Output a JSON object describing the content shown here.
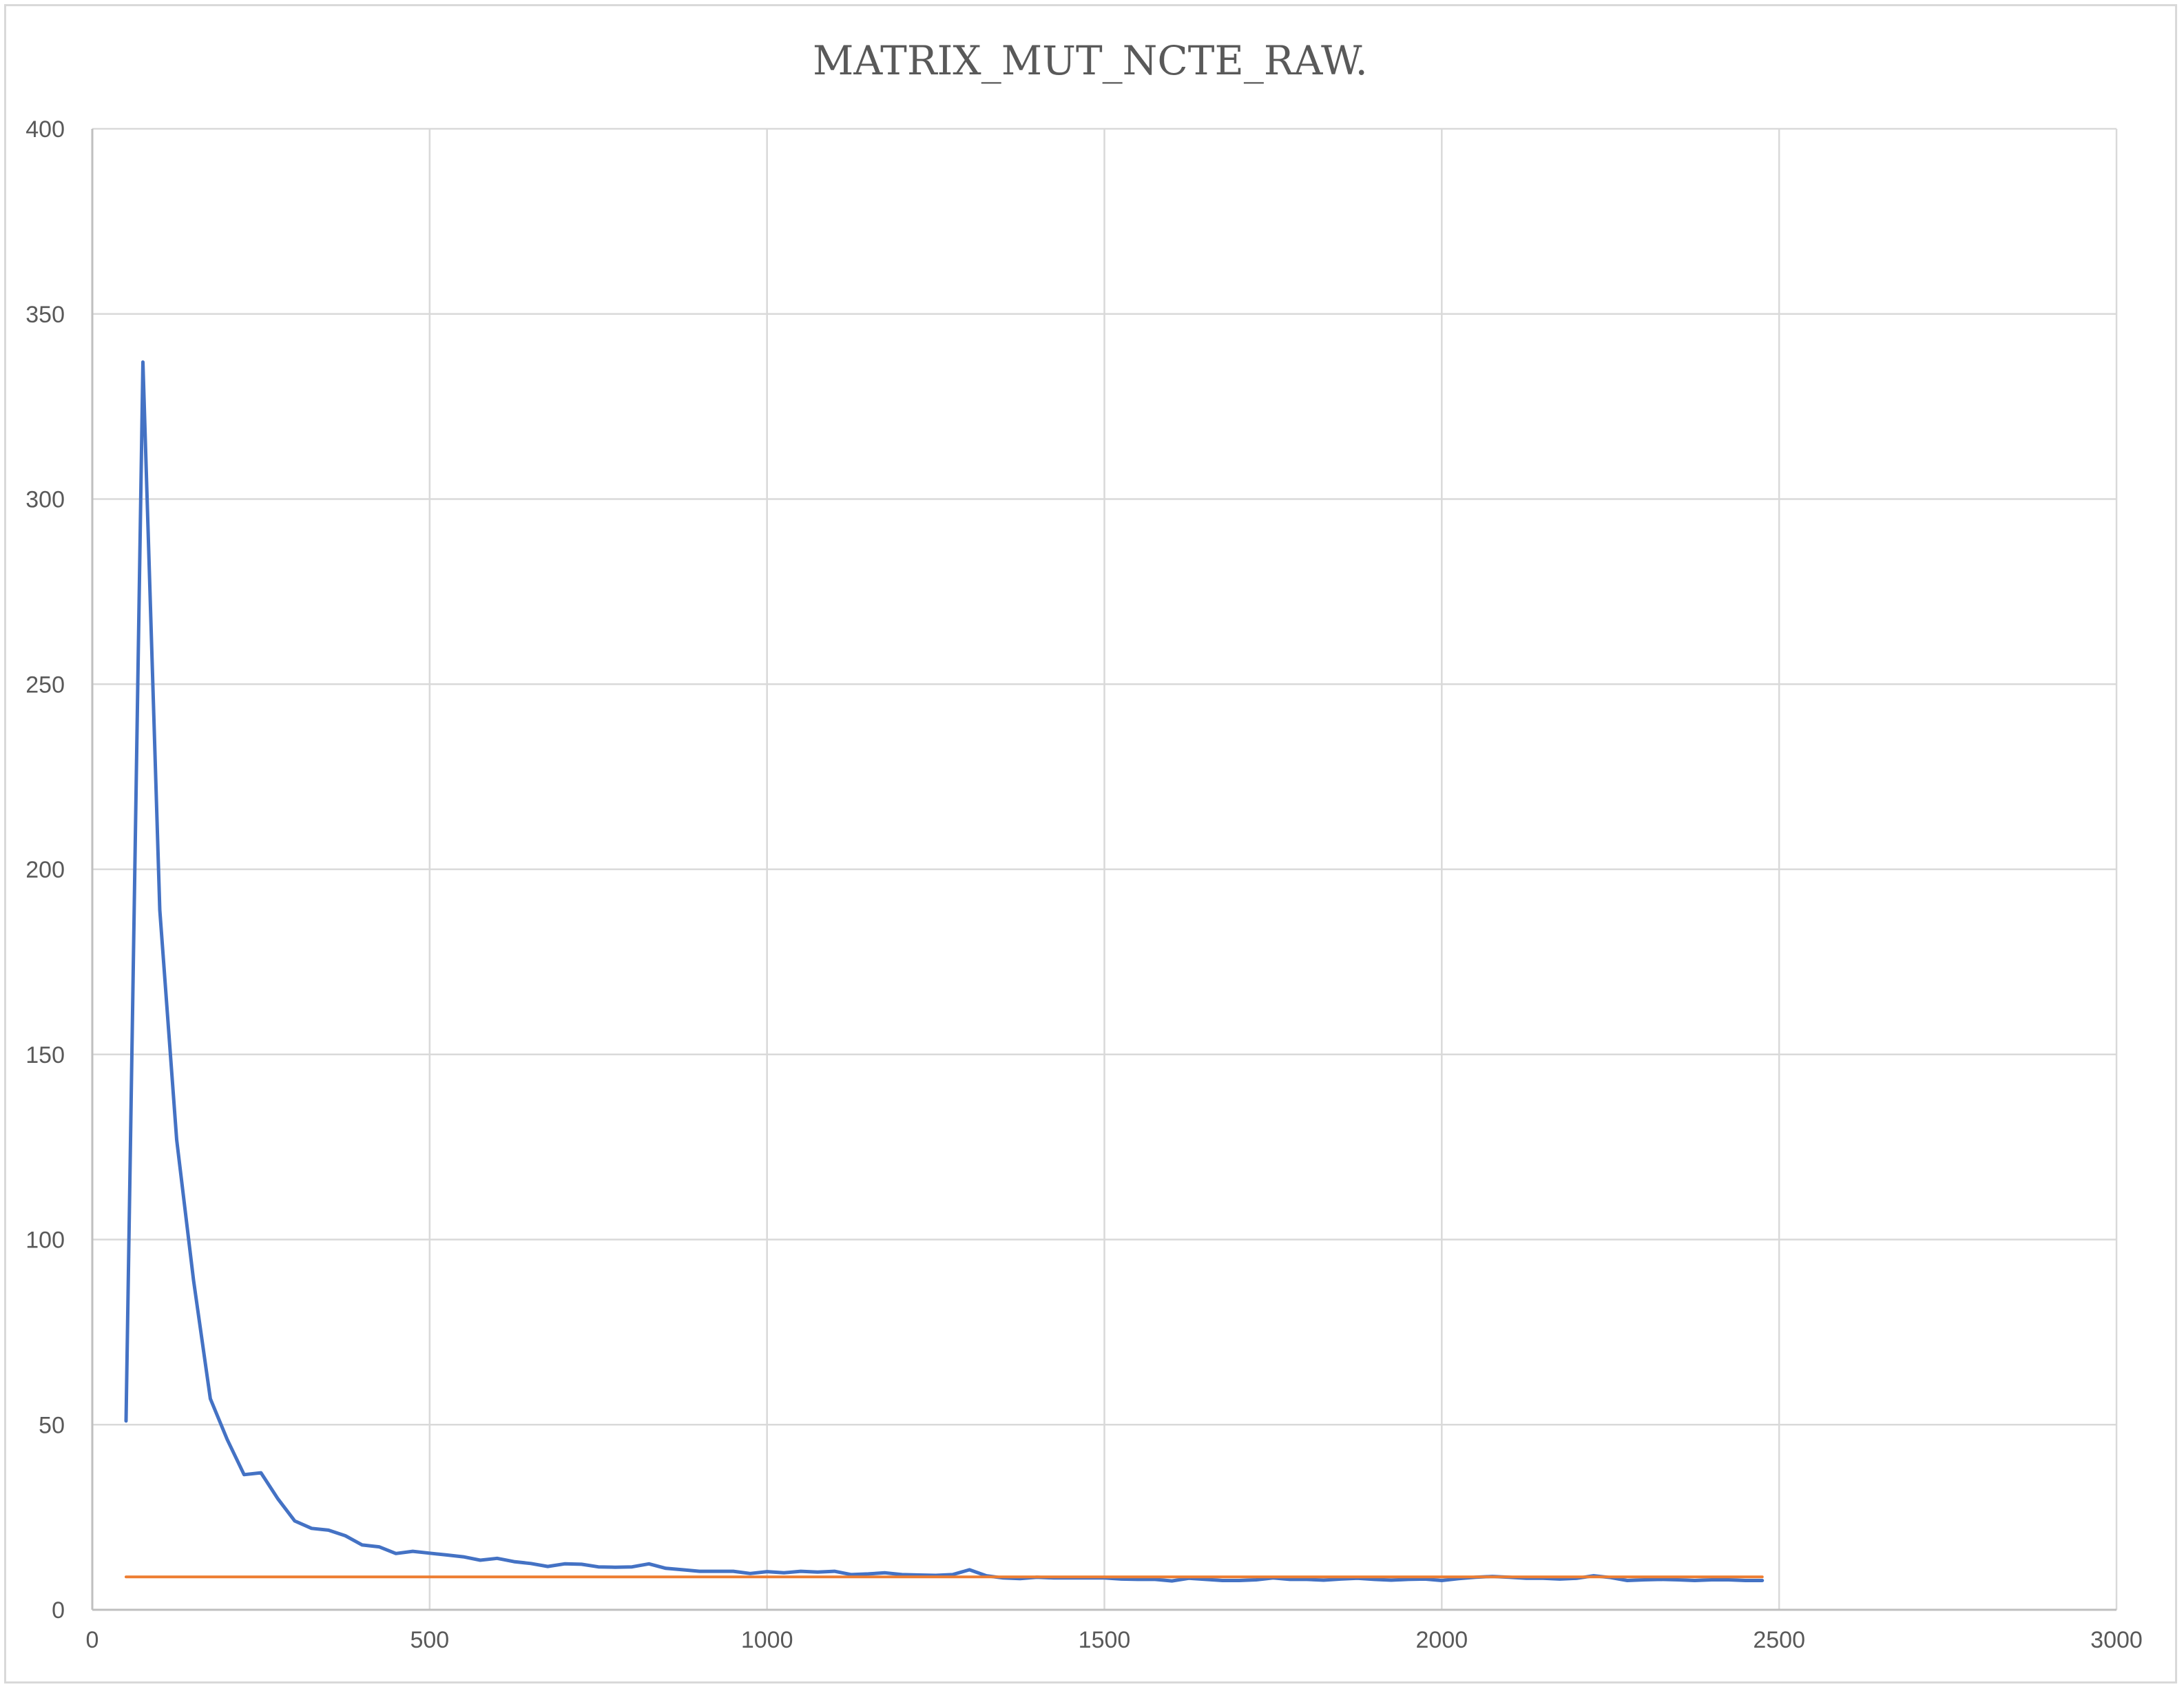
{
  "chart_data": {
    "type": "line",
    "title": "MATRIX_MUT_NCTE_RAW.",
    "xlim": [
      0,
      3000
    ],
    "ylim": [
      0,
      400
    ],
    "x_ticks": [
      0,
      500,
      1000,
      1500,
      2000,
      2500,
      3000
    ],
    "y_ticks": [
      0,
      50,
      100,
      150,
      200,
      250,
      300,
      350,
      400
    ],
    "grid": true,
    "legend": "none",
    "series": [
      {
        "color": "#4472C4",
        "x": [
          50,
          75,
          100,
          125,
          150,
          175,
          200,
          225,
          250,
          275,
          300,
          325,
          350,
          375,
          400,
          425,
          450,
          475,
          500,
          525,
          550,
          575,
          600,
          625,
          650,
          675,
          700,
          725,
          750,
          775,
          800,
          825,
          850,
          875,
          900,
          925,
          950,
          975,
          1000,
          1025,
          1050,
          1075,
          1100,
          1125,
          1150,
          1175,
          1200,
          1225,
          1250,
          1275,
          1300,
          1325,
          1350,
          1375,
          1400,
          1425,
          1450,
          1475,
          1500,
          1525,
          1550,
          1575,
          1600,
          1625,
          1650,
          1675,
          1700,
          1725,
          1750,
          1775,
          1800,
          1825,
          1850,
          1875,
          1900,
          1925,
          1950,
          1975,
          2000,
          2025,
          2050,
          2075,
          2100,
          2125,
          2150,
          2175,
          2200,
          2225,
          2250,
          2275,
          2300,
          2325,
          2350,
          2375,
          2400,
          2425,
          2450,
          2475
        ],
        "y": [
          51,
          337,
          189,
          127,
          89,
          57,
          46,
          36.5,
          37,
          30,
          24,
          22,
          21.5,
          20,
          17.5,
          17,
          15.2,
          15.8,
          15.3,
          14.8,
          14.3,
          13.4,
          13.9,
          13,
          12.5,
          11.7,
          12.4,
          12.3,
          11.6,
          11.5,
          11.6,
          12.4,
          11.2,
          10.8,
          10.4,
          10.4,
          10.4,
          9.8,
          10.3,
          10,
          10.4,
          10.2,
          10.4,
          9.5,
          9.7,
          10,
          9.5,
          9.4,
          9.3,
          9.5,
          10.8,
          9.2,
          8.6,
          8.4,
          8.8,
          8.6,
          8.6,
          8.6,
          8.6,
          8.3,
          8.2,
          8.2,
          7.8,
          8.5,
          8.2,
          7.9,
          7.9,
          8.1,
          8.6,
          8.2,
          8.2,
          8,
          8.3,
          8.5,
          8.2,
          8,
          8.2,
          8.3,
          7.9,
          8.4,
          8.8,
          9,
          8.8,
          8.5,
          8.5,
          8.3,
          8.5,
          9.2,
          8.7,
          7.9,
          8.1,
          8.2,
          8.1,
          7.9,
          8.1,
          8.1,
          7.9,
          7.9
        ]
      },
      {
        "color": "#ED7D31",
        "x": [
          50,
          2475
        ],
        "y": [
          8.9,
          8.9
        ]
      }
    ]
  }
}
